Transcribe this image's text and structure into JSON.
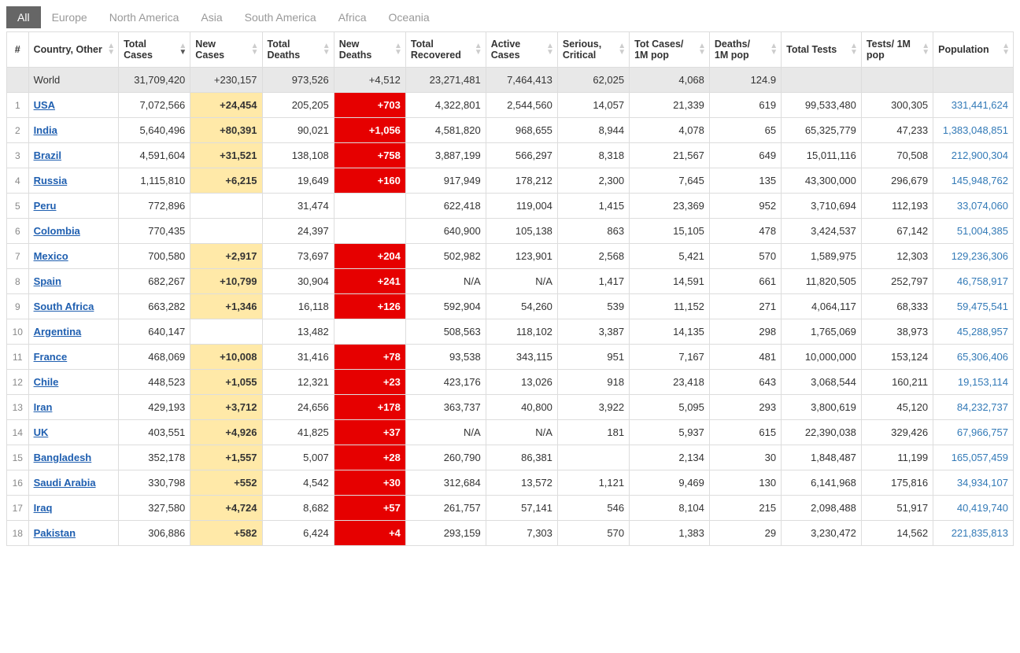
{
  "tabs": [
    {
      "label": "All",
      "active": true
    },
    {
      "label": "Europe",
      "active": false
    },
    {
      "label": "North America",
      "active": false
    },
    {
      "label": "Asia",
      "active": false
    },
    {
      "label": "South America",
      "active": false
    },
    {
      "label": "Africa",
      "active": false
    },
    {
      "label": "Oceania",
      "active": false
    }
  ],
  "columns": [
    {
      "key": "idx",
      "label": "#"
    },
    {
      "key": "country",
      "label": "Country, Other"
    },
    {
      "key": "total_cases",
      "label": "Total Cases",
      "sorted": "desc"
    },
    {
      "key": "new_cases",
      "label": "New Cases"
    },
    {
      "key": "total_deaths",
      "label": "Total Deaths"
    },
    {
      "key": "new_deaths",
      "label": "New Deaths"
    },
    {
      "key": "total_recovered",
      "label": "Total Recovered"
    },
    {
      "key": "active_cases",
      "label": "Active Cases"
    },
    {
      "key": "serious",
      "label": "Serious, Critical"
    },
    {
      "key": "cases_1m",
      "label": "Tot Cases/ 1M pop"
    },
    {
      "key": "deaths_1m",
      "label": "Deaths/ 1M pop"
    },
    {
      "key": "total_tests",
      "label": "Total Tests"
    },
    {
      "key": "tests_1m",
      "label": "Tests/ 1M pop"
    },
    {
      "key": "population",
      "label": "Population"
    }
  ],
  "world_row": {
    "country": "World",
    "total_cases": "31,709,420",
    "new_cases": "+230,157",
    "total_deaths": "973,526",
    "new_deaths": "+4,512",
    "total_recovered": "23,271,481",
    "active_cases": "7,464,413",
    "serious": "62,025",
    "cases_1m": "4,068",
    "deaths_1m": "124.9",
    "total_tests": "",
    "tests_1m": "",
    "population": ""
  },
  "rows": [
    {
      "idx": "1",
      "country": "USA",
      "total_cases": "7,072,566",
      "new_cases": "+24,454",
      "total_deaths": "205,205",
      "new_deaths": "+703",
      "total_recovered": "4,322,801",
      "active_cases": "2,544,560",
      "serious": "14,057",
      "cases_1m": "21,339",
      "deaths_1m": "619",
      "total_tests": "99,533,480",
      "tests_1m": "300,305",
      "population": "331,441,624"
    },
    {
      "idx": "2",
      "country": "India",
      "total_cases": "5,640,496",
      "new_cases": "+80,391",
      "total_deaths": "90,021",
      "new_deaths": "+1,056",
      "total_recovered": "4,581,820",
      "active_cases": "968,655",
      "serious": "8,944",
      "cases_1m": "4,078",
      "deaths_1m": "65",
      "total_tests": "65,325,779",
      "tests_1m": "47,233",
      "population": "1,383,048,851"
    },
    {
      "idx": "3",
      "country": "Brazil",
      "total_cases": "4,591,604",
      "new_cases": "+31,521",
      "total_deaths": "138,108",
      "new_deaths": "+758",
      "total_recovered": "3,887,199",
      "active_cases": "566,297",
      "serious": "8,318",
      "cases_1m": "21,567",
      "deaths_1m": "649",
      "total_tests": "15,011,116",
      "tests_1m": "70,508",
      "population": "212,900,304"
    },
    {
      "idx": "4",
      "country": "Russia",
      "total_cases": "1,115,810",
      "new_cases": "+6,215",
      "total_deaths": "19,649",
      "new_deaths": "+160",
      "total_recovered": "917,949",
      "active_cases": "178,212",
      "serious": "2,300",
      "cases_1m": "7,645",
      "deaths_1m": "135",
      "total_tests": "43,300,000",
      "tests_1m": "296,679",
      "population": "145,948,762"
    },
    {
      "idx": "5",
      "country": "Peru",
      "total_cases": "772,896",
      "new_cases": "",
      "total_deaths": "31,474",
      "new_deaths": "",
      "total_recovered": "622,418",
      "active_cases": "119,004",
      "serious": "1,415",
      "cases_1m": "23,369",
      "deaths_1m": "952",
      "total_tests": "3,710,694",
      "tests_1m": "112,193",
      "population": "33,074,060"
    },
    {
      "idx": "6",
      "country": "Colombia",
      "total_cases": "770,435",
      "new_cases": "",
      "total_deaths": "24,397",
      "new_deaths": "",
      "total_recovered": "640,900",
      "active_cases": "105,138",
      "serious": "863",
      "cases_1m": "15,105",
      "deaths_1m": "478",
      "total_tests": "3,424,537",
      "tests_1m": "67,142",
      "population": "51,004,385"
    },
    {
      "idx": "7",
      "country": "Mexico",
      "total_cases": "700,580",
      "new_cases": "+2,917",
      "total_deaths": "73,697",
      "new_deaths": "+204",
      "total_recovered": "502,982",
      "active_cases": "123,901",
      "serious": "2,568",
      "cases_1m": "5,421",
      "deaths_1m": "570",
      "total_tests": "1,589,975",
      "tests_1m": "12,303",
      "population": "129,236,306"
    },
    {
      "idx": "8",
      "country": "Spain",
      "total_cases": "682,267",
      "new_cases": "+10,799",
      "total_deaths": "30,904",
      "new_deaths": "+241",
      "total_recovered": "N/A",
      "active_cases": "N/A",
      "serious": "1,417",
      "cases_1m": "14,591",
      "deaths_1m": "661",
      "total_tests": "11,820,505",
      "tests_1m": "252,797",
      "population": "46,758,917"
    },
    {
      "idx": "9",
      "country": "South Africa",
      "total_cases": "663,282",
      "new_cases": "+1,346",
      "total_deaths": "16,118",
      "new_deaths": "+126",
      "total_recovered": "592,904",
      "active_cases": "54,260",
      "serious": "539",
      "cases_1m": "11,152",
      "deaths_1m": "271",
      "total_tests": "4,064,117",
      "tests_1m": "68,333",
      "population": "59,475,541"
    },
    {
      "idx": "10",
      "country": "Argentina",
      "total_cases": "640,147",
      "new_cases": "",
      "total_deaths": "13,482",
      "new_deaths": "",
      "total_recovered": "508,563",
      "active_cases": "118,102",
      "serious": "3,387",
      "cases_1m": "14,135",
      "deaths_1m": "298",
      "total_tests": "1,765,069",
      "tests_1m": "38,973",
      "population": "45,288,957"
    },
    {
      "idx": "11",
      "country": "France",
      "total_cases": "468,069",
      "new_cases": "+10,008",
      "total_deaths": "31,416",
      "new_deaths": "+78",
      "total_recovered": "93,538",
      "active_cases": "343,115",
      "serious": "951",
      "cases_1m": "7,167",
      "deaths_1m": "481",
      "total_tests": "10,000,000",
      "tests_1m": "153,124",
      "population": "65,306,406"
    },
    {
      "idx": "12",
      "country": "Chile",
      "total_cases": "448,523",
      "new_cases": "+1,055",
      "total_deaths": "12,321",
      "new_deaths": "+23",
      "total_recovered": "423,176",
      "active_cases": "13,026",
      "serious": "918",
      "cases_1m": "23,418",
      "deaths_1m": "643",
      "total_tests": "3,068,544",
      "tests_1m": "160,211",
      "population": "19,153,114"
    },
    {
      "idx": "13",
      "country": "Iran",
      "total_cases": "429,193",
      "new_cases": "+3,712",
      "total_deaths": "24,656",
      "new_deaths": "+178",
      "total_recovered": "363,737",
      "active_cases": "40,800",
      "serious": "3,922",
      "cases_1m": "5,095",
      "deaths_1m": "293",
      "total_tests": "3,800,619",
      "tests_1m": "45,120",
      "population": "84,232,737"
    },
    {
      "idx": "14",
      "country": "UK",
      "total_cases": "403,551",
      "new_cases": "+4,926",
      "total_deaths": "41,825",
      "new_deaths": "+37",
      "total_recovered": "N/A",
      "active_cases": "N/A",
      "serious": "181",
      "cases_1m": "5,937",
      "deaths_1m": "615",
      "total_tests": "22,390,038",
      "tests_1m": "329,426",
      "population": "67,966,757"
    },
    {
      "idx": "15",
      "country": "Bangladesh",
      "total_cases": "352,178",
      "new_cases": "+1,557",
      "total_deaths": "5,007",
      "new_deaths": "+28",
      "total_recovered": "260,790",
      "active_cases": "86,381",
      "serious": "",
      "cases_1m": "2,134",
      "deaths_1m": "30",
      "total_tests": "1,848,487",
      "tests_1m": "11,199",
      "population": "165,057,459"
    },
    {
      "idx": "16",
      "country": "Saudi Arabia",
      "total_cases": "330,798",
      "new_cases": "+552",
      "total_deaths": "4,542",
      "new_deaths": "+30",
      "total_recovered": "312,684",
      "active_cases": "13,572",
      "serious": "1,121",
      "cases_1m": "9,469",
      "deaths_1m": "130",
      "total_tests": "6,141,968",
      "tests_1m": "175,816",
      "population": "34,934,107"
    },
    {
      "idx": "17",
      "country": "Iraq",
      "total_cases": "327,580",
      "new_cases": "+4,724",
      "total_deaths": "8,682",
      "new_deaths": "+57",
      "total_recovered": "261,757",
      "active_cases": "57,141",
      "serious": "546",
      "cases_1m": "8,104",
      "deaths_1m": "215",
      "total_tests": "2,098,488",
      "tests_1m": "51,917",
      "population": "40,419,740"
    },
    {
      "idx": "18",
      "country": "Pakistan",
      "total_cases": "306,886",
      "new_cases": "+582",
      "total_deaths": "6,424",
      "new_deaths": "+4",
      "total_recovered": "293,159",
      "active_cases": "7,303",
      "serious": "570",
      "cases_1m": "1,383",
      "deaths_1m": "29",
      "total_tests": "3,230,472",
      "tests_1m": "14,562",
      "population": "221,835,813"
    }
  ],
  "highlights": {
    "new_cases_bg": "#ffe9a8",
    "new_deaths_bg": "#e60000",
    "new_deaths_fg": "#ffffff",
    "link_color": "#1f5fb0",
    "pop_link_color": "#337ab7",
    "world_row_bg": "#e8e8e8",
    "border_color": "#dddddd"
  }
}
